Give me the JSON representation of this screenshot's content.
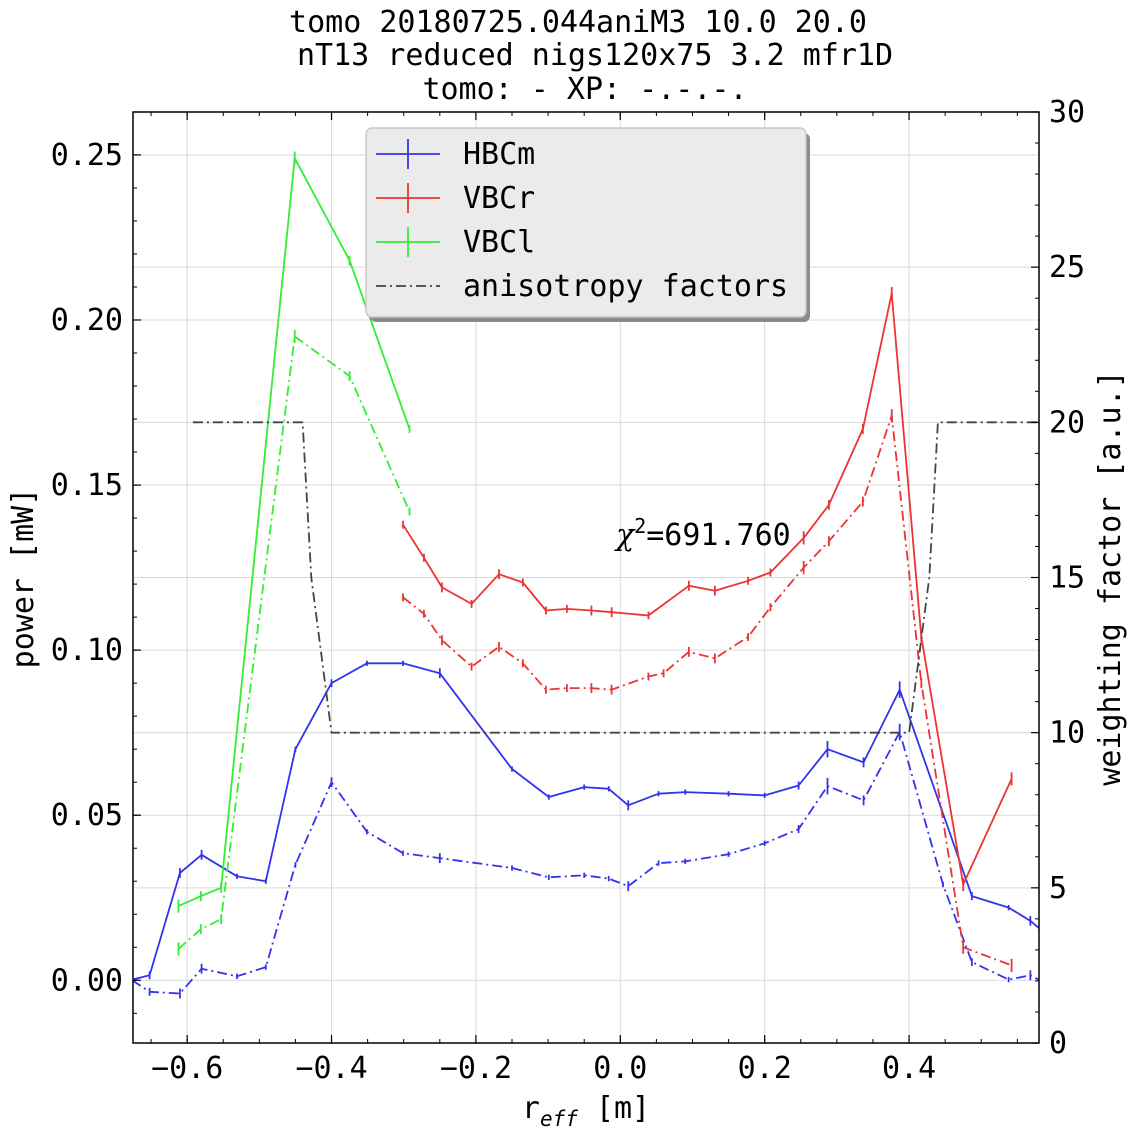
{
  "chart_data": {
    "type": "line",
    "title_lines": [
      "tomo 20180725.044aniM3  10.0 20.0",
      "nT13 reduced nigs120x75 3.2 mfr1D",
      "tomo: -   XP: -.-.-."
    ],
    "xlabel_main": "r",
    "xlabel_sub": "eff",
    "xlabel_unit": " [m]",
    "ylabel": "power [mW]",
    "y2label": "weighting factor [a.u.]",
    "annotation_chi": "χ",
    "annotation_sup": "2",
    "annotation_value": "=691.760",
    "xlim": [
      -0.675,
      0.58
    ],
    "ylim": [
      -0.019,
      0.263
    ],
    "y2lim": [
      0,
      30
    ],
    "x_ticks": [
      -0.6,
      -0.4,
      -0.2,
      0.0,
      0.2,
      0.4
    ],
    "x_tick_labels": [
      "−0.6",
      "−0.4",
      "−0.2",
      "0.0",
      "0.2",
      "0.4"
    ],
    "y_ticks": [
      0.0,
      0.05,
      0.1,
      0.15,
      0.2,
      0.25
    ],
    "y_tick_labels": [
      "0.00",
      "0.05",
      "0.10",
      "0.15",
      "0.20",
      "0.25"
    ],
    "y2_ticks": [
      0,
      5,
      10,
      15,
      20,
      25,
      30
    ],
    "y2_tick_labels": [
      "0",
      "5",
      "10",
      "15",
      "20",
      "25",
      "30"
    ],
    "grid": true,
    "legend_position": "top-center",
    "legend": [
      {
        "label": "HBCm",
        "color": "#3333ee",
        "dash": "solid",
        "errorbar": true
      },
      {
        "label": "VBCr",
        "color": "#ee3333",
        "dash": "solid",
        "errorbar": true
      },
      {
        "label": "VBCl",
        "color": "#33ee33",
        "dash": "solid",
        "errorbar": true
      },
      {
        "label": "anisotropy factors",
        "color": "#444444",
        "dash": "dashdot",
        "errorbar": false
      }
    ],
    "series": [
      {
        "name": "HBCm",
        "color": "#3333ee",
        "dash": "solid",
        "axis": "left",
        "x": [
          -0.676,
          -0.652,
          -0.61,
          -0.58,
          -0.531,
          -0.491,
          -0.45,
          -0.4,
          -0.351,
          -0.301,
          -0.25,
          -0.15,
          -0.099,
          -0.05,
          -0.016,
          0.011,
          0.053,
          0.09,
          0.15,
          0.2,
          0.247,
          0.287,
          0.337,
          0.387,
          0.487,
          0.538,
          0.568,
          0.59
        ],
        "y": [
          0.0002,
          0.0015,
          0.0325,
          0.038,
          0.0315,
          0.03,
          0.07,
          0.09,
          0.096,
          0.096,
          0.093,
          0.064,
          0.0555,
          0.0585,
          0.058,
          0.053,
          0.0565,
          0.057,
          0.0565,
          0.056,
          0.059,
          0.07,
          0.066,
          0.088,
          0.0255,
          0.022,
          0.018,
          0.014
        ],
        "err": [
          0,
          0.0012,
          0.0015,
          0.0015,
          0.0008,
          0.0008,
          0.0008,
          0.0012,
          0.0008,
          0.0008,
          0.0015,
          0.0008,
          0.0008,
          0.0008,
          0.0008,
          0.0015,
          0.0008,
          0.0008,
          0.0008,
          0.0008,
          0.0012,
          0.0025,
          0.0015,
          0.0025,
          0.0012,
          0.0008,
          0.0015,
          0
        ]
      },
      {
        "name": "",
        "color": "#3333ee",
        "dash": "dashdot",
        "axis": "left",
        "x": [
          -0.676,
          -0.652,
          -0.61,
          -0.58,
          -0.531,
          -0.491,
          -0.45,
          -0.4,
          -0.351,
          -0.301,
          -0.25,
          -0.15,
          -0.099,
          -0.05,
          -0.016,
          0.011,
          0.053,
          0.09,
          0.15,
          0.2,
          0.247,
          0.287,
          0.337,
          0.387,
          0.447,
          0.487,
          0.538,
          0.568,
          0.59
        ],
        "y": [
          0.0,
          -0.0035,
          -0.004,
          0.0035,
          0.0012,
          0.004,
          0.035,
          0.06,
          0.045,
          0.0385,
          0.037,
          0.034,
          0.0312,
          0.0318,
          0.0308,
          0.0285,
          0.0355,
          0.036,
          0.0382,
          0.0415,
          0.0458,
          0.0588,
          0.0545,
          0.0752,
          0.029,
          0.0055,
          0.0002,
          0.0015,
          -0.001
        ],
        "err": [
          0,
          0.0012,
          0.0015,
          0.0015,
          0.0008,
          0.0008,
          0.0008,
          0.0015,
          0.0008,
          0.0008,
          0.0015,
          0.0008,
          0.0008,
          0.0008,
          0.0008,
          0.0015,
          0.0008,
          0.0008,
          0.0008,
          0.0008,
          0.0012,
          0.0025,
          0.0015,
          0.0025,
          0.0008,
          0.0012,
          0.0008,
          0.0015,
          0
        ]
      },
      {
        "name": "VBCr",
        "color": "#ee3333",
        "dash": "solid",
        "axis": "left",
        "x": [
          -0.301,
          -0.272,
          -0.247,
          -0.206,
          -0.168,
          -0.135,
          -0.103,
          -0.074,
          -0.04,
          -0.012,
          0.039,
          0.095,
          0.131,
          0.177,
          0.208,
          0.254,
          0.289,
          0.336,
          0.376,
          0.417,
          0.475,
          0.542
        ],
        "y": [
          0.138,
          0.128,
          0.119,
          0.114,
          0.123,
          0.1205,
          0.112,
          0.1125,
          0.112,
          0.1115,
          0.1105,
          0.1195,
          0.118,
          0.121,
          0.1235,
          0.134,
          0.144,
          0.167,
          0.208,
          0.104,
          0.029,
          0.061
        ],
        "err": [
          0.0012,
          0.0012,
          0.0015,
          0.0012,
          0.0015,
          0.0012,
          0.0012,
          0.0012,
          0.0015,
          0.0015,
          0.0012,
          0.0015,
          0.0015,
          0.0012,
          0.0012,
          0.002,
          0.0015,
          0.0015,
          0.002,
          0.0015,
          0.002,
          0.002
        ]
      },
      {
        "name": "",
        "color": "#ee3333",
        "dash": "dashdot",
        "axis": "left",
        "x": [
          -0.301,
          -0.272,
          -0.247,
          -0.206,
          -0.168,
          -0.135,
          -0.103,
          -0.074,
          -0.04,
          -0.012,
          0.039,
          0.06,
          0.095,
          0.131,
          0.177,
          0.208,
          0.254,
          0.289,
          0.336,
          0.376,
          0.417,
          0.475,
          0.542
        ],
        "y": [
          0.116,
          0.111,
          0.103,
          0.095,
          0.101,
          0.096,
          0.088,
          0.0885,
          0.0885,
          0.088,
          0.092,
          0.093,
          0.0995,
          0.0975,
          0.104,
          0.113,
          0.125,
          0.133,
          0.145,
          0.171,
          0.09,
          0.01,
          0.0045
        ],
        "err": [
          0.0012,
          0.0012,
          0.0015,
          0.0012,
          0.0015,
          0.0012,
          0.0012,
          0.0012,
          0.0015,
          0.0015,
          0.0012,
          0.0012,
          0.0015,
          0.0015,
          0.0012,
          0.0012,
          0.002,
          0.0015,
          0.0015,
          0.002,
          0.0015,
          0.002,
          0.002
        ]
      },
      {
        "name": "VBCl",
        "color": "#33ee33",
        "dash": "solid",
        "axis": "left",
        "x": [
          -0.612,
          -0.581,
          -0.553,
          -0.451,
          -0.375,
          -0.292
        ],
        "y": [
          0.0225,
          0.0255,
          0.028,
          0.249,
          0.218,
          0.167
        ],
        "err": [
          0.002,
          0.0015,
          0.0015,
          0.002,
          0.0015,
          0.0012
        ]
      },
      {
        "name": "",
        "color": "#33ee33",
        "dash": "dashdot",
        "axis": "left",
        "x": [
          -0.612,
          -0.581,
          -0.553,
          -0.451,
          -0.375,
          -0.292
        ],
        "y": [
          0.0095,
          0.0155,
          0.0185,
          0.195,
          0.183,
          0.142
        ],
        "err": [
          0.002,
          0.0015,
          0.0015,
          0.002,
          0.0015,
          0.0012
        ]
      },
      {
        "name": "anisotropy factors",
        "color": "#444444",
        "dash": "dashdot",
        "axis": "right",
        "x": [
          -0.592,
          -0.44,
          -0.428,
          -0.4,
          0.4,
          0.428,
          0.44,
          0.6
        ],
        "y": [
          20,
          20,
          15,
          10,
          10,
          15,
          20,
          20
        ],
        "err": []
      }
    ]
  }
}
